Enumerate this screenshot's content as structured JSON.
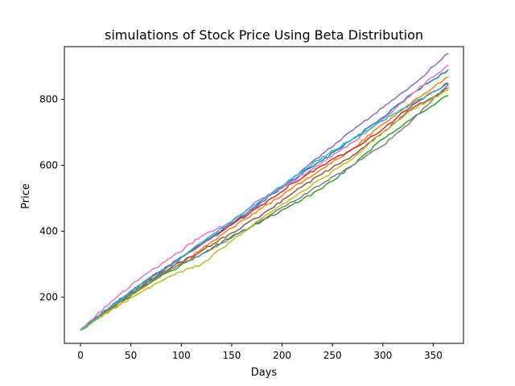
{
  "chart_data": {
    "type": "line",
    "title": "simulations of Stock Price Using Beta Distribution",
    "xlabel": "Days",
    "ylabel": "Price",
    "xlim": [
      -16,
      380
    ],
    "ylim": [
      60,
      960
    ],
    "xticks": [
      0,
      50,
      100,
      150,
      200,
      250,
      300,
      350
    ],
    "yticks": [
      200,
      400,
      600,
      800
    ],
    "grid": false,
    "legend": "none",
    "series": [
      {
        "color": "#1f77b4",
        "x": [
          0,
          30,
          60,
          90,
          120,
          150,
          180,
          210,
          240,
          270,
          300,
          330,
          365
        ],
        "values": [
          100,
          172,
          240,
          300,
          360,
          420,
          490,
          555,
          615,
          680,
          745,
          820,
          890
        ]
      },
      {
        "color": "#ff7f0e",
        "x": [
          0,
          30,
          60,
          90,
          120,
          150,
          180,
          210,
          240,
          270,
          300,
          330,
          365
        ],
        "values": [
          100,
          160,
          225,
          285,
          345,
          410,
          470,
          530,
          590,
          650,
          725,
          795,
          868
        ]
      },
      {
        "color": "#2ca02c",
        "x": [
          0,
          30,
          60,
          90,
          120,
          150,
          180,
          210,
          240,
          270,
          300,
          330,
          365
        ],
        "values": [
          100,
          165,
          228,
          280,
          330,
          385,
          430,
          480,
          530,
          600,
          680,
          745,
          812
        ]
      },
      {
        "color": "#d62728",
        "x": [
          0,
          30,
          60,
          90,
          120,
          150,
          180,
          210,
          240,
          270,
          300,
          330,
          365
        ],
        "values": [
          100,
          170,
          240,
          300,
          360,
          420,
          480,
          545,
          600,
          650,
          710,
          785,
          850
        ]
      },
      {
        "color": "#9467bd",
        "x": [
          0,
          30,
          60,
          90,
          120,
          150,
          180,
          210,
          240,
          270,
          300,
          330,
          365
        ],
        "values": [
          100,
          170,
          240,
          295,
          360,
          425,
          490,
          560,
          635,
          705,
          775,
          845,
          940
        ]
      },
      {
        "color": "#8c564b",
        "x": [
          0,
          30,
          60,
          90,
          120,
          150,
          180,
          210,
          240,
          270,
          300,
          330,
          365
        ],
        "values": [
          100,
          168,
          232,
          290,
          340,
          395,
          450,
          515,
          575,
          630,
          700,
          775,
          835
        ]
      },
      {
        "color": "#e377c2",
        "x": [
          0,
          30,
          60,
          90,
          120,
          150,
          180,
          210,
          240,
          270,
          300,
          330,
          365
        ],
        "values": [
          100,
          185,
          260,
          320,
          385,
          430,
          500,
          550,
          610,
          670,
          740,
          820,
          905
        ]
      },
      {
        "color": "#7f7f7f",
        "x": [
          0,
          30,
          60,
          90,
          120,
          150,
          180,
          210,
          240,
          270,
          300,
          330,
          365
        ],
        "values": [
          100,
          165,
          232,
          288,
          330,
          380,
          435,
          490,
          545,
          600,
          660,
          740,
          845
        ]
      },
      {
        "color": "#bcbd22",
        "x": [
          0,
          30,
          60,
          90,
          120,
          150,
          180,
          210,
          240,
          270,
          300,
          330,
          365
        ],
        "values": [
          100,
          160,
          215,
          265,
          300,
          370,
          440,
          500,
          560,
          620,
          700,
          770,
          828
        ]
      },
      {
        "color": "#17becf",
        "x": [
          0,
          30,
          60,
          90,
          120,
          150,
          180,
          210,
          240,
          270,
          300,
          330,
          365
        ],
        "values": [
          100,
          172,
          240,
          300,
          365,
          430,
          495,
          560,
          625,
          680,
          735,
          790,
          848
        ]
      }
    ]
  }
}
